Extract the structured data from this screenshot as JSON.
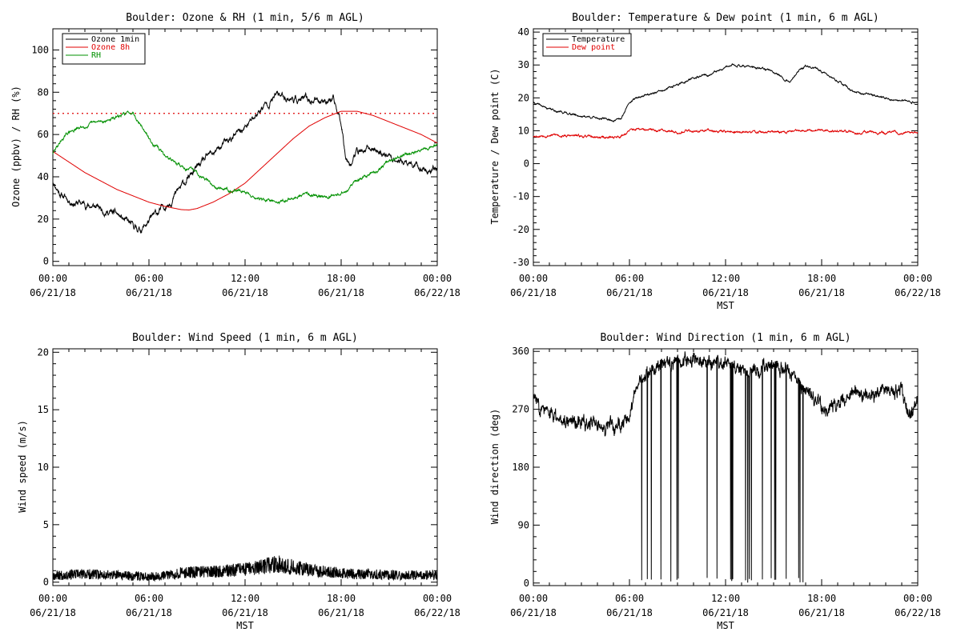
{
  "colors": {
    "ozone": "#000000",
    "ozone8h": "#e00000",
    "rh": "#009000",
    "temperature": "#000000",
    "dewpoint": "#e00000",
    "wind": "#000000",
    "threshold": "#e00000"
  },
  "chart_data": [
    {
      "id": "ozone",
      "type": "line",
      "title": "Boulder: Ozone & RH (1 min, 5/6 m AGL)",
      "ylabel": "Ozone (ppbv) / RH (%)",
      "xlabel": "",
      "xlim": [
        0,
        24
      ],
      "ylim": [
        -2,
        110
      ],
      "yticks": [
        0,
        20,
        40,
        60,
        80,
        100
      ],
      "xticks": [
        {
          "x": 0,
          "time": "00:00",
          "date": "06/21/18"
        },
        {
          "x": 6,
          "time": "06:00",
          "date": "06/21/18"
        },
        {
          "x": 12,
          "time": "12:00",
          "date": "06/21/18"
        },
        {
          "x": 18,
          "time": "18:00",
          "date": "06/21/18"
        },
        {
          "x": 24,
          "time": "00:00",
          "date": "06/22/18"
        }
      ],
      "legend_position": "top-left",
      "legend": [
        "Ozone 1min",
        "Ozone 8h",
        "RH"
      ],
      "threshold": {
        "y": 70,
        "style": "dotted",
        "color": "#e00000"
      },
      "series": [
        {
          "name": "Ozone 1min",
          "color": "#000000",
          "noise": 1.8,
          "seed": 11,
          "x": [
            0,
            0.5,
            1,
            2,
            3,
            4,
            4.5,
            5,
            5.5,
            6,
            7,
            8,
            9,
            10,
            11,
            12,
            13,
            14,
            15,
            16,
            17,
            17.5,
            18,
            18.3,
            18.6,
            19,
            20,
            21,
            22,
            23,
            23.5,
            24
          ],
          "values": [
            38,
            32,
            29,
            27,
            25,
            22,
            19,
            16,
            15,
            19,
            26,
            35,
            44,
            51,
            57,
            63,
            72,
            79,
            77,
            76,
            77,
            76,
            66,
            50,
            47,
            52,
            53,
            50,
            46,
            44,
            43,
            45
          ]
        },
        {
          "name": "Ozone 8h",
          "color": "#e00000",
          "noise": 0,
          "seed": 0,
          "x": [
            0,
            1,
            2,
            3,
            4,
            5,
            6,
            7,
            8,
            8.5,
            9,
            10,
            11,
            12,
            13,
            14,
            15,
            16,
            17,
            18,
            19,
            20,
            21,
            22,
            23,
            24
          ],
          "values": [
            52,
            47,
            42,
            38,
            34,
            31,
            28,
            26,
            24.5,
            24.3,
            25,
            28,
            32,
            37,
            44,
            51,
            58,
            64,
            68,
            71,
            71,
            69,
            66,
            63,
            60,
            56
          ]
        },
        {
          "name": "RH",
          "color": "#009000",
          "noise": 0.8,
          "seed": 29,
          "x": [
            0,
            0.5,
            1,
            2,
            3,
            4,
            4.5,
            5,
            5.4,
            6,
            7,
            8,
            9,
            10,
            11,
            12,
            13,
            14,
            15,
            16,
            17,
            18,
            19,
            20,
            21,
            22,
            23,
            24
          ],
          "values": [
            51,
            57,
            61,
            64,
            66,
            68,
            69.5,
            71,
            66,
            58,
            50,
            45,
            42,
            36,
            34,
            33,
            29,
            28,
            30,
            32,
            31,
            32,
            38,
            42,
            47,
            50,
            53,
            55
          ]
        }
      ]
    },
    {
      "id": "temp",
      "type": "line",
      "title": "Boulder: Temperature & Dew point (1 min, 6 m AGL)",
      "ylabel": "Temperature / Dew point (C)",
      "xlabel": "MST",
      "xlim": [
        0,
        24
      ],
      "ylim": [
        -31,
        41
      ],
      "yticks": [
        -30,
        -20,
        -10,
        0,
        10,
        20,
        30,
        40
      ],
      "xticks": [
        {
          "x": 0,
          "time": "00:00",
          "date": "06/21/18"
        },
        {
          "x": 6,
          "time": "06:00",
          "date": "06/21/18"
        },
        {
          "x": 12,
          "time": "12:00",
          "date": "06/21/18"
        },
        {
          "x": 18,
          "time": "18:00",
          "date": "06/21/18"
        },
        {
          "x": 24,
          "time": "00:00",
          "date": "06/22/18"
        }
      ],
      "legend_position": "top-left",
      "legend": [
        "Temperature",
        "Dew point"
      ],
      "series": [
        {
          "name": "Temperature",
          "color": "#000000",
          "noise": 0.35,
          "seed": 41,
          "x": [
            0,
            1,
            2,
            3,
            4,
            5,
            5.5,
            6,
            7,
            8,
            9,
            10,
            11,
            12,
            12.5,
            13,
            14,
            15,
            16,
            16.5,
            17,
            17.5,
            18,
            19,
            20,
            21,
            22,
            23,
            24
          ],
          "values": [
            18.5,
            16.5,
            15.5,
            14.5,
            14,
            13.2,
            13.5,
            19,
            21,
            22,
            24,
            26,
            27,
            29,
            30,
            30,
            29,
            28,
            25,
            28,
            29.5,
            29,
            28,
            25,
            22,
            21,
            20,
            19,
            18.5
          ]
        },
        {
          "name": "Dew point",
          "color": "#e00000",
          "noise": 0.4,
          "seed": 53,
          "x": [
            0,
            1,
            2,
            3,
            4,
            5,
            5.5,
            6,
            6.5,
            7,
            8,
            9,
            10,
            11,
            12,
            13,
            14,
            15,
            16,
            17,
            18,
            19,
            20,
            21,
            22,
            23,
            24
          ],
          "values": [
            8.5,
            8.8,
            8.5,
            8.3,
            8,
            8,
            8.5,
            10,
            10.5,
            10,
            10.2,
            9.8,
            10,
            10.2,
            9.8,
            9.5,
            9.6,
            9.4,
            9.8,
            10.5,
            10.2,
            9.8,
            9.5,
            9.5,
            9.3,
            9.3,
            9.5
          ]
        }
      ]
    },
    {
      "id": "speed",
      "type": "line",
      "title": "Boulder: Wind Speed (1 min, 6 m AGL)",
      "ylabel": "Wind speed (m/s)",
      "xlabel": "MST",
      "xlim": [
        0,
        24
      ],
      "ylim": [
        -0.3,
        20.3
      ],
      "yticks": [
        0,
        5,
        10,
        15,
        20
      ],
      "xticks": [
        {
          "x": 0,
          "time": "00:00",
          "date": "06/21/18"
        },
        {
          "x": 6,
          "time": "06:00",
          "date": "06/21/18"
        },
        {
          "x": 12,
          "time": "12:00",
          "date": "06/21/18"
        },
        {
          "x": 18,
          "time": "18:00",
          "date": "06/21/18"
        },
        {
          "x": 24,
          "time": "00:00",
          "date": "06/22/18"
        }
      ],
      "series": [
        {
          "name": "Wind speed",
          "color": "#000000",
          "noise": 0.35,
          "seed": 67,
          "x": [
            0,
            2,
            4,
            6,
            7,
            8,
            9,
            10,
            11,
            12,
            13,
            14,
            15,
            16,
            17,
            18,
            19,
            20,
            22,
            24
          ],
          "values": [
            0.6,
            0.7,
            0.6,
            0.5,
            0.6,
            0.8,
            0.9,
            0.9,
            1,
            1.1,
            1.3,
            1.6,
            1.3,
            1.1,
            0.9,
            0.8,
            0.7,
            0.7,
            0.6,
            0.6
          ]
        }
      ]
    },
    {
      "id": "dir",
      "type": "line",
      "title": "Boulder: Wind Direction (1 min, 6 m AGL)",
      "ylabel": "Wind direction (deg)",
      "xlabel": "MST",
      "xlim": [
        0,
        24
      ],
      "ylim": [
        -4,
        364
      ],
      "yticks": [
        0,
        90,
        180,
        270,
        360
      ],
      "xticks": [
        {
          "x": 0,
          "time": "00:00",
          "date": "06/21/18"
        },
        {
          "x": 6,
          "time": "06:00",
          "date": "06/21/18"
        },
        {
          "x": 12,
          "time": "12:00",
          "date": "06/21/18"
        },
        {
          "x": 18,
          "time": "18:00",
          "date": "06/21/18"
        },
        {
          "x": 24,
          "time": "00:00",
          "date": "06/22/18"
        }
      ],
      "wrap_window": [
        6.5,
        17
      ],
      "series": [
        {
          "name": "Wind direction",
          "color": "#000000",
          "noise": 14,
          "seed": 83,
          "x": [
            0,
            1,
            2,
            3,
            4,
            5,
            6,
            6.5,
            7,
            8,
            9,
            10,
            11,
            12,
            13,
            14,
            15,
            16,
            17,
            18,
            19,
            20,
            21,
            22,
            23,
            23.5,
            24
          ],
          "values": [
            290,
            260,
            255,
            250,
            245,
            240,
            260,
            300,
            320,
            340,
            345,
            350,
            345,
            340,
            335,
            330,
            340,
            330,
            300,
            270,
            275,
            300,
            290,
            305,
            300,
            255,
            285
          ]
        }
      ]
    }
  ]
}
